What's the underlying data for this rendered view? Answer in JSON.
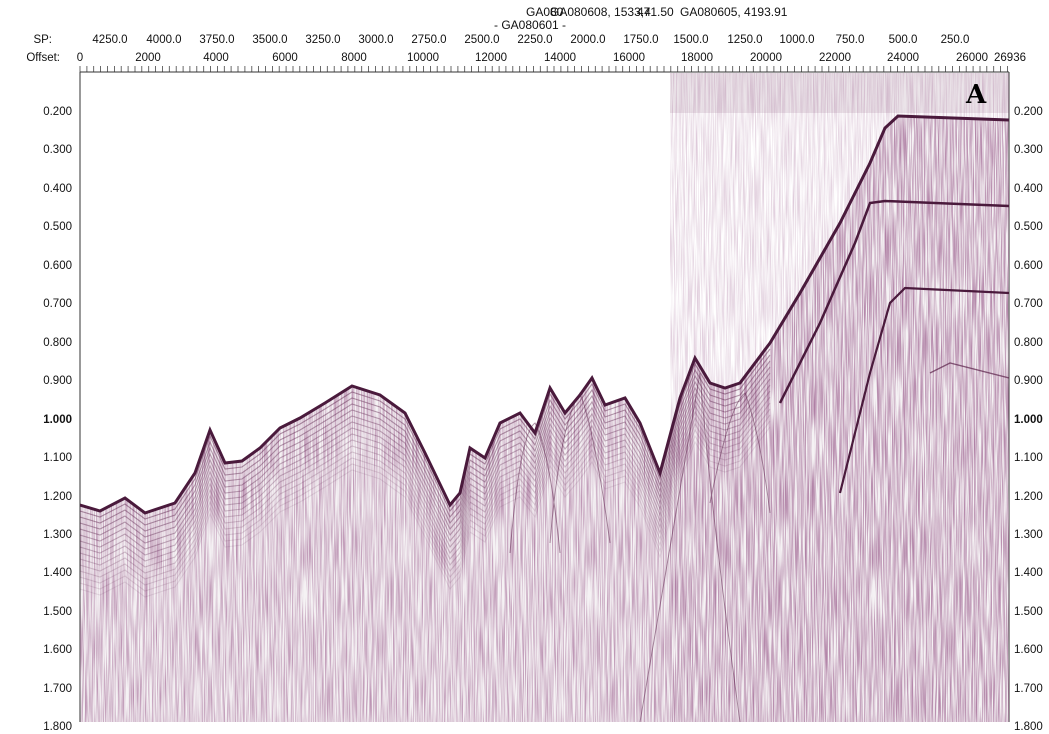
{
  "header": {
    "line_labels": {
      "top_left_a": "GA080",
      "top_left_b": "GA080608, 1533,4",
      "top_left_c": "471.50",
      "top_right": "GA080605, 4193.91",
      "middle": "- GA080601 -"
    },
    "sp_label": "SP:",
    "offset_label": "Offset:",
    "sp_ticks": [
      "4250.0",
      "4000.0",
      "3750.0",
      "3500.0",
      "3250.0",
      "3000.0",
      "2750.0",
      "2500.0",
      "2250.0",
      "2000.0",
      "1750.0",
      "1500.0",
      "1250.0",
      "1000.0",
      "750.0",
      "500.0",
      "250.0"
    ],
    "offset_ticks": [
      "0",
      "2000",
      "4000",
      "6000",
      "8000",
      "10000",
      "12000",
      "14000",
      "16000",
      "18000",
      "20000",
      "22000",
      "24000",
      "26000"
    ],
    "offset_end": "26936"
  },
  "axis": {
    "time_ticks": [
      "0.200",
      "0.300",
      "0.400",
      "0.500",
      "0.600",
      "0.700",
      "0.800",
      "0.900",
      "1.000",
      "1.100",
      "1.200",
      "1.300",
      "1.400",
      "1.500",
      "1.600",
      "1.700",
      "1.800"
    ],
    "bold_tick": "1.000"
  },
  "panel": {
    "letter": "A"
  },
  "colors": {
    "seismic": "#5a2149",
    "background": "#ffffff",
    "text": "#111111"
  }
}
